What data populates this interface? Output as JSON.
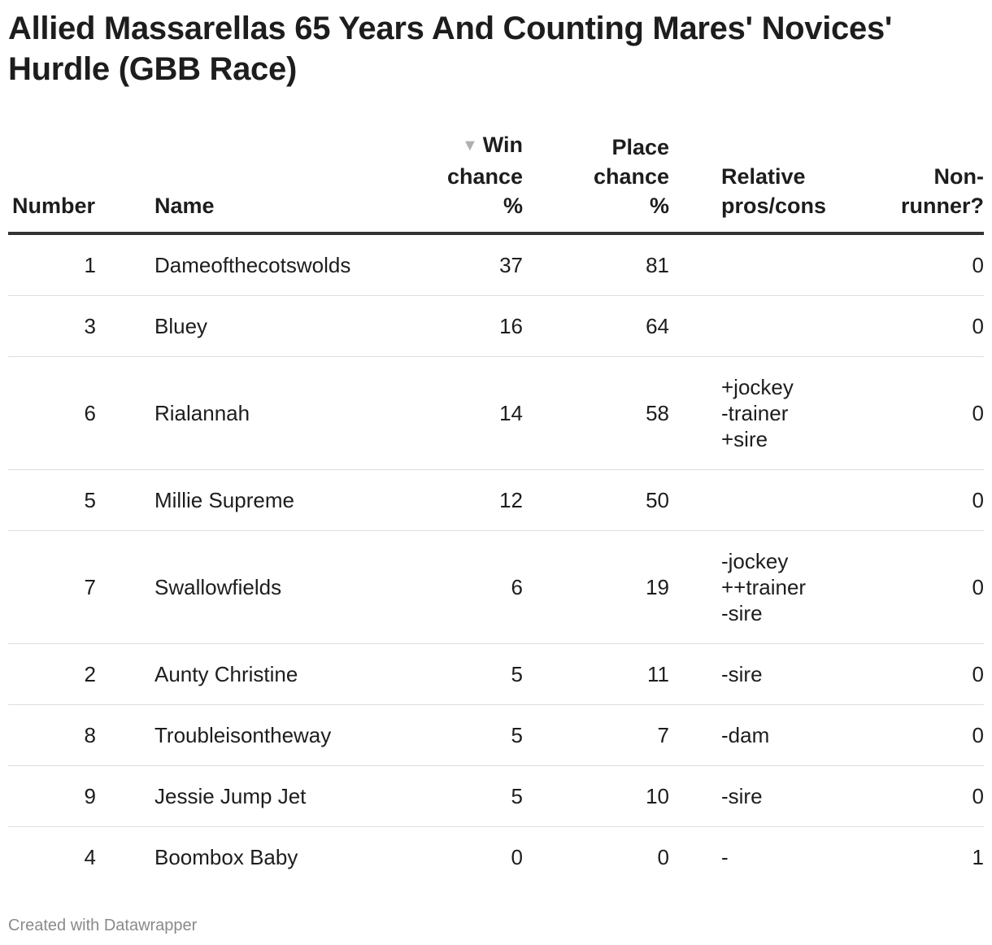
{
  "title": "Allied Massarellas 65 Years And Counting Mares' Novices' Hurdle (GBB Race)",
  "footer": "Created with Datawrapper",
  "sort_indicator": "▼",
  "chart_data": {
    "type": "table",
    "title": "Allied Massarellas 65 Years And Counting Mares' Novices' Hurdle (GBB Race)",
    "sorted_by": "Win chance %",
    "sort_direction": "descending",
    "columns": [
      "Number",
      "Name",
      "Win chance %",
      "Place chance %",
      "Relative pros/cons",
      "Non-runner?"
    ],
    "rows": [
      {
        "number": "1",
        "name": "Dameofthecotswolds",
        "win": "37",
        "place": "81",
        "relative": "",
        "non_runner": "0"
      },
      {
        "number": "3",
        "name": "Bluey",
        "win": "16",
        "place": "64",
        "relative": "",
        "non_runner": "0"
      },
      {
        "number": "6",
        "name": "Rialannah",
        "win": "14",
        "place": "58",
        "relative": "+jockey\n-trainer\n+sire",
        "non_runner": "0"
      },
      {
        "number": "5",
        "name": "Millie Supreme",
        "win": "12",
        "place": "50",
        "relative": "",
        "non_runner": "0"
      },
      {
        "number": "7",
        "name": "Swallowfields",
        "win": "6",
        "place": "19",
        "relative": "-jockey\n++trainer\n-sire",
        "non_runner": "0"
      },
      {
        "number": "2",
        "name": "Aunty Christine",
        "win": "5",
        "place": "11",
        "relative": "-sire",
        "non_runner": "0"
      },
      {
        "number": "8",
        "name": "Troubleisontheway",
        "win": "5",
        "place": "7",
        "relative": "-dam",
        "non_runner": "0"
      },
      {
        "number": "9",
        "name": "Jessie Jump Jet",
        "win": "5",
        "place": "10",
        "relative": "-sire",
        "non_runner": "0"
      },
      {
        "number": "4",
        "name": "Boombox Baby",
        "win": "0",
        "place": "0",
        "relative": "-",
        "non_runner": "1"
      }
    ]
  },
  "header": {
    "number": "Number",
    "name": "Name",
    "win_line1": "Win",
    "win_line2": "chance",
    "win_line3": "%",
    "place_line1": "Place",
    "place_line2": "chance",
    "place_line3": "%",
    "relative_line1": "Relative",
    "relative_line2": "pros/cons",
    "nonrunner_line1": "Non-",
    "nonrunner_line2": "runner?"
  }
}
